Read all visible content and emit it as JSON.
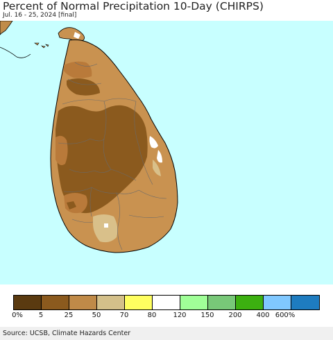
{
  "header": {
    "title": "Percent of Normal Precipitation 10-Day (CHIRPS)",
    "subtitle": "Jul. 16 - 25, 2024 [final]"
  },
  "map": {
    "ocean_color": "#c8ffff",
    "land_colors": {
      "very_dry": "#8b5a1e",
      "dry": "#b97a3a",
      "moderate": "#c99250",
      "near_normal": "#d9c08a",
      "normal": "#ffffff",
      "neighbor_land": "#c08c4a"
    }
  },
  "legend": {
    "colors": [
      "#5a3a10",
      "#8b5a1e",
      "#c08a48",
      "#d4c08a",
      "#ffff60",
      "#ffffff",
      "#a0ff98",
      "#78c878",
      "#3cb010",
      "#80c8ff",
      "#1e7cc0"
    ],
    "labels": [
      "0%",
      "5",
      "25",
      "50",
      "70",
      "80",
      "120",
      "150",
      "200",
      "400",
      "600%"
    ]
  },
  "footer": {
    "source": "Source: UCSB, Climate Hazards Center"
  }
}
